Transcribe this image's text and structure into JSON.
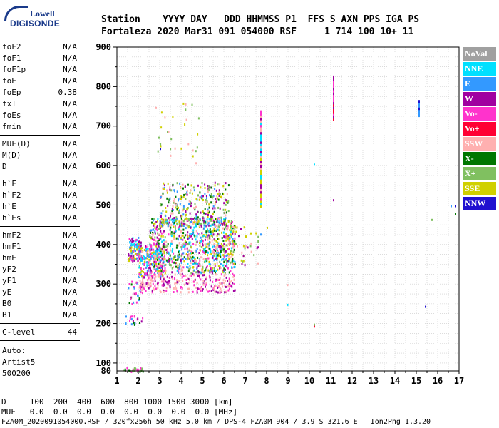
{
  "logo": {
    "line1": "Lowell",
    "line2": "DIGISONDE"
  },
  "header": {
    "line1": "Station    YYYY DAY   DDD HHMMSS P1  FFS S AXN PPS IGA PS",
    "line2": "Fortaleza 2020 Mar31 091 054000 RSF     1 714 100 10+ 11"
  },
  "parameters": {
    "group1": [
      {
        "k": "foF2",
        "v": "N/A"
      },
      {
        "k": "foF1",
        "v": "N/A"
      },
      {
        "k": "foF1p",
        "v": "N/A"
      },
      {
        "k": "foE",
        "v": "N/A"
      },
      {
        "k": "foEp",
        "v": "0.38"
      },
      {
        "k": "fxI",
        "v": "N/A"
      },
      {
        "k": "foEs",
        "v": "N/A"
      },
      {
        "k": "fmin",
        "v": "N/A"
      }
    ],
    "group2": [
      {
        "k": "MUF(D)",
        "v": "N/A"
      },
      {
        "k": "M(D)",
        "v": "N/A"
      },
      {
        "k": "D",
        "v": "N/A"
      }
    ],
    "group3": [
      {
        "k": "h`F",
        "v": "N/A"
      },
      {
        "k": "h`F2",
        "v": "N/A"
      },
      {
        "k": "h`E",
        "v": "N/A"
      },
      {
        "k": "h`Es",
        "v": "N/A"
      }
    ],
    "group4": [
      {
        "k": "hmF2",
        "v": "N/A"
      },
      {
        "k": "hmF1",
        "v": "N/A"
      },
      {
        "k": "hmE",
        "v": "N/A"
      },
      {
        "k": "yF2",
        "v": "N/A"
      },
      {
        "k": "yF1",
        "v": "N/A"
      },
      {
        "k": "yE",
        "v": "N/A"
      },
      {
        "k": "B0",
        "v": "N/A"
      },
      {
        "k": "B1",
        "v": "N/A"
      }
    ],
    "group5": [
      {
        "k": "C-level",
        "v": "44"
      }
    ],
    "auto": [
      "Auto:",
      "Artist5",
      "500200"
    ]
  },
  "bottom_table": {
    "line1": "D     100  200  400  600  800 1000 1500 3000 [km]",
    "line2": "MUF   0.0  0.0  0.0  0.0  0.0  0.0  0.0  0.0 [MHz]"
  },
  "footer": "FZA0M_2020091054000.RSF / 320fx256h 50 kHz 5.0 km / DPS-4 FZA0M 904 / 3.9 S 321.6 E   Ion2Png 1.3.20",
  "legend": [
    {
      "label": "NoVal",
      "color": "#a0a0a0"
    },
    {
      "label": "NNE",
      "color": "#00e0ff"
    },
    {
      "label": "E",
      "color": "#3399ff"
    },
    {
      "label": "W",
      "color": "#a000a0"
    },
    {
      "label": "Vo-",
      "color": "#ff33cc"
    },
    {
      "label": "Vo+",
      "color": "#ff0033"
    },
    {
      "label": "SSW",
      "color": "#ffb0b0"
    },
    {
      "label": "X-",
      "color": "#007700"
    },
    {
      "label": "X+",
      "color": "#80c060"
    },
    {
      "label": "SSE",
      "color": "#d0d000"
    },
    {
      "label": "NNW",
      "color": "#2010d0"
    }
  ],
  "chart_data": {
    "type": "scatter",
    "title": "",
    "xlabel": "",
    "ylabel": "",
    "xlim": [
      1,
      17
    ],
    "ylim": [
      80,
      900
    ],
    "xticks": [
      1,
      2,
      3,
      4,
      5,
      6,
      7,
      8,
      9,
      10,
      11,
      12,
      13,
      14,
      15,
      16,
      17
    ],
    "yticks": [
      100,
      200,
      300,
      400,
      500,
      600,
      700,
      800,
      900
    ],
    "ytick_bottom_label": "80",
    "grid": true,
    "legend_position": "right",
    "clusters": [
      {
        "x": [
          1.5,
          2.1
        ],
        "y": [
          360,
          420
        ],
        "n": 120,
        "colors": [
          "#ff33cc",
          "#00e0ff",
          "#3399ff",
          "#a000a0",
          "#d0d000"
        ]
      },
      {
        "x": [
          2.0,
          3.2
        ],
        "y": [
          320,
          400
        ],
        "n": 200,
        "colors": [
          "#3399ff",
          "#d0d000",
          "#00e0ff",
          "#ff33cc",
          "#a000a0",
          "#ffb0b0"
        ]
      },
      {
        "x": [
          2.5,
          6.5
        ],
        "y": [
          330,
          470
        ],
        "n": 900,
        "colors": [
          "#d0d000",
          "#3399ff",
          "#a000a0",
          "#ff33cc",
          "#00e0ff",
          "#80c060",
          "#007700",
          "#ffb0b0"
        ]
      },
      {
        "x": [
          3.0,
          6.2
        ],
        "y": [
          450,
          560
        ],
        "n": 300,
        "colors": [
          "#d0d000",
          "#a000a0",
          "#3399ff",
          "#ffb0b0",
          "#007700",
          "#80c060"
        ]
      },
      {
        "x": [
          2.0,
          6.5
        ],
        "y": [
          280,
          330
        ],
        "n": 260,
        "colors": [
          "#ffb0b0",
          "#ffb0b0",
          "#ff33cc",
          "#a000a0"
        ]
      },
      {
        "x": [
          2.8,
          4.8
        ],
        "y": [
          600,
          760
        ],
        "n": 30,
        "colors": [
          "#d0d000",
          "#ffb0b0",
          "#80c060"
        ]
      },
      {
        "x": [
          6.0,
          7.6
        ],
        "y": [
          350,
          450
        ],
        "n": 60,
        "colors": [
          "#d0d000",
          "#ffb0b0",
          "#80c060",
          "#a000a0"
        ]
      },
      {
        "x": [
          1.3,
          2.2
        ],
        "y": [
          80,
          90
        ],
        "n": 40,
        "colors": [
          "#007700",
          "#80c060",
          "#ff33cc"
        ]
      },
      {
        "x": [
          1.3,
          2.2
        ],
        "y": [
          198,
          222
        ],
        "n": 20,
        "colors": [
          "#3399ff",
          "#007700",
          "#a000a0",
          "#ff33cc"
        ]
      },
      {
        "x": [
          1.5,
          2.1
        ],
        "y": [
          240,
          310
        ],
        "n": 25,
        "colors": [
          "#007700",
          "#3399ff",
          "#ff33cc"
        ]
      }
    ],
    "columns": [
      {
        "x": 7.7,
        "y": [
          500,
          740
        ],
        "colors": [
          "#ffb0b0",
          "#d0d000",
          "#ff33cc",
          "#00e0ff",
          "#a000a0"
        ]
      },
      {
        "x": 11.1,
        "y": [
          720,
          830
        ],
        "colors": [
          "#ff33cc",
          "#a000a0",
          "#ff0033"
        ]
      },
      {
        "x": 15.1,
        "y": [
          730,
          770
        ],
        "colors": [
          "#2010d0",
          "#3399ff"
        ]
      }
    ],
    "points": [
      {
        "x": 10.2,
        "y": 605,
        "c": "#00e0ff"
      },
      {
        "x": 11.1,
        "y": 515,
        "c": "#a000a0"
      },
      {
        "x": 8.95,
        "y": 250,
        "c": "#00e0ff"
      },
      {
        "x": 10.2,
        "y": 195,
        "c": "#ff0033"
      },
      {
        "x": 10.2,
        "y": 200,
        "c": "#80c060"
      },
      {
        "x": 15.4,
        "y": 245,
        "c": "#2010d0"
      },
      {
        "x": 16.6,
        "y": 500,
        "c": "#3399ff"
      },
      {
        "x": 16.8,
        "y": 500,
        "c": "#2010d0"
      },
      {
        "x": 16.8,
        "y": 480,
        "c": "#007700"
      },
      {
        "x": 15.7,
        "y": 465,
        "c": "#80c060"
      },
      {
        "x": 8.95,
        "y": 300,
        "c": "#ffb0b0"
      },
      {
        "x": 3.0,
        "y": 645,
        "c": "#2010d0"
      },
      {
        "x": 7.7,
        "y": 428,
        "c": "#3399ff"
      },
      {
        "x": 8.0,
        "y": 445,
        "c": "#d0d000"
      }
    ]
  }
}
